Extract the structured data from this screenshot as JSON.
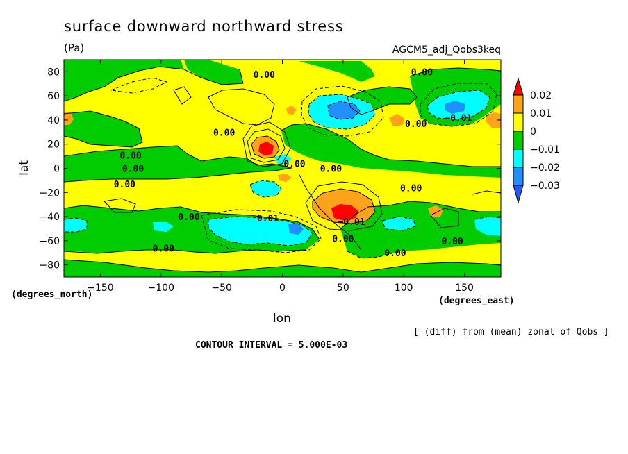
{
  "chart_data": {
    "type": "contour-map",
    "title": "surface downward northward stress",
    "units": "(Pa)",
    "dataset": "AGCM5_adj_Qobs3keq",
    "xlabel": "lon",
    "ylabel": "lat",
    "x_units": "(degrees_east)",
    "y_units": "(degrees_north)",
    "xlim": [
      -180,
      180
    ],
    "ylim": [
      -90,
      90
    ],
    "x_ticks": [
      -150,
      -100,
      -50,
      0,
      50,
      100,
      150
    ],
    "x_tick_labels": [
      "−150",
      "−100",
      "−50",
      "0",
      "50",
      "100",
      "150"
    ],
    "y_ticks": [
      80,
      60,
      40,
      20,
      0,
      -20,
      -40,
      -60,
      -80
    ],
    "y_tick_labels": [
      "80",
      "60",
      "40",
      "20",
      "0",
      "−20",
      "−40",
      "−60",
      "−80"
    ],
    "colorbar": {
      "levels": [
        0.02,
        0.01,
        0,
        -0.01,
        -0.02,
        -0.03
      ],
      "labels": [
        "0.02",
        "0.01",
        "0",
        "−0.01",
        "−0.02",
        "−0.03"
      ],
      "colors": [
        "#ff0000",
        "#ffa31a",
        "#ffff00",
        "#00cc00",
        "#00ffff",
        "#1e90ff",
        "#2255ff"
      ]
    },
    "contour_labels": [
      {
        "text": "0.00",
        "lon": -15,
        "lat": 78
      },
      {
        "text": "0.00",
        "lon": 115,
        "lat": 80
      },
      {
        "text": "0.00",
        "lon": -48,
        "lat": 30
      },
      {
        "text": "0.00",
        "lon": 110,
        "lat": 37
      },
      {
        "text": "-0.01",
        "lon": 145,
        "lat": 42
      },
      {
        "text": "0.00",
        "lon": -125,
        "lat": 11
      },
      {
        "text": "0.00",
        "lon": 10,
        "lat": 4
      },
      {
        "text": "0.00",
        "lon": 40,
        "lat": 0
      },
      {
        "text": "0.00",
        "lon": -123,
        "lat": 0
      },
      {
        "text": "0.00",
        "lon": -130,
        "lat": -13
      },
      {
        "text": "0.00",
        "lon": 106,
        "lat": -16
      },
      {
        "text": "0.00",
        "lon": -77,
        "lat": -40
      },
      {
        "text": "0.01",
        "lon": -12,
        "lat": -41
      },
      {
        "text": "-0.01",
        "lon": 57,
        "lat": -44
      },
      {
        "text": "0.00",
        "lon": 50,
        "lat": -58
      },
      {
        "text": "0.00",
        "lon": 140,
        "lat": -60
      },
      {
        "text": "0.00",
        "lon": -98,
        "lat": -66
      },
      {
        "text": "0.00",
        "lon": 93,
        "lat": -70
      }
    ],
    "footnote": "[ (diff) from (mean) zonal of Qobs ]",
    "contour_interval": "CONTOUR INTERVAL = 5.000E-03"
  }
}
